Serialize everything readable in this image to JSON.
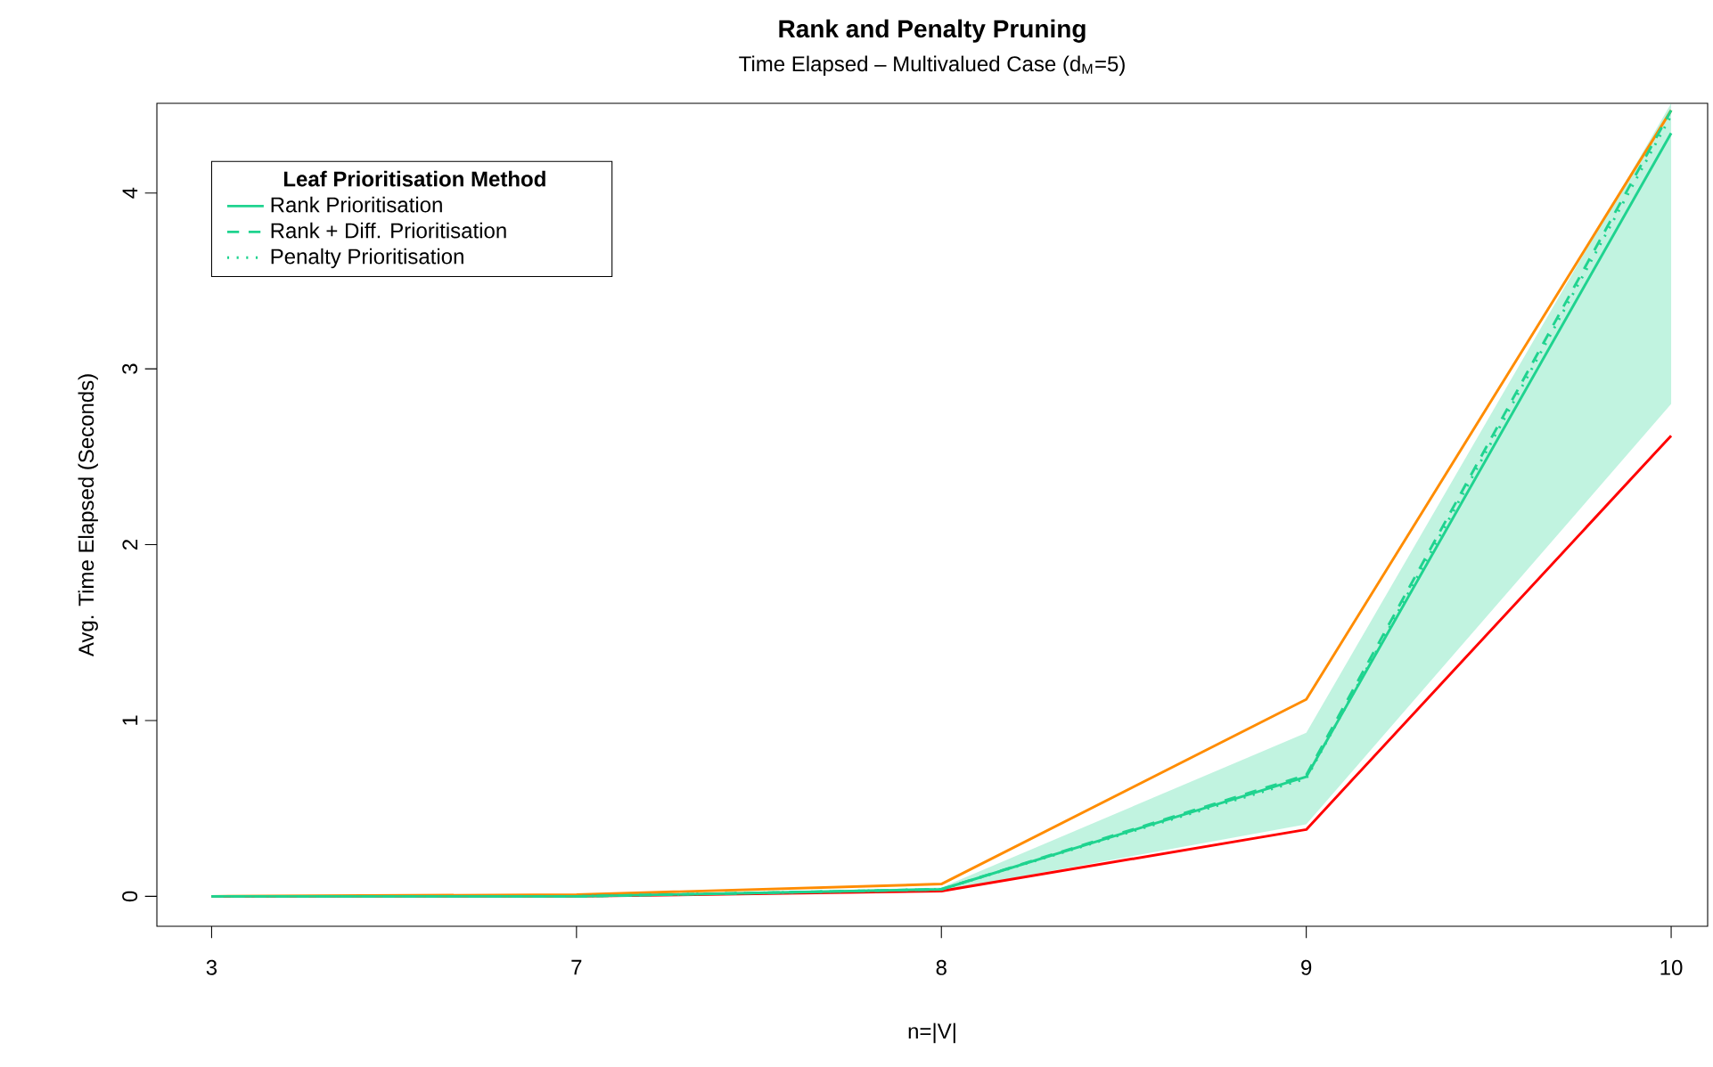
{
  "chart_data": {
    "type": "line",
    "title": "Rank and Penalty Pruning",
    "subtitle": "Time Elapsed – Multivalued Case (d$_{M}$=5)",
    "xlabel": "n=|V|",
    "ylabel": "Avg. Time Elapsed (Seconds)",
    "legend_title": "Leaf Prioritisation Method",
    "categories": [
      "3",
      "7",
      "8",
      "9",
      "10"
    ],
    "ylim": [
      -0.17,
      4.51
    ],
    "yticks": [
      0,
      1,
      2,
      3,
      4
    ],
    "legend": "top left",
    "series": [
      {
        "color": "#ff8c00",
        "values": [
          0,
          0.01,
          0.07,
          1.12,
          4.47
        ]
      },
      {
        "color": "#ff0000",
        "values": [
          0,
          0,
          0.03,
          0.38,
          2.62
        ]
      },
      {
        "name": "Rank Prioritisation",
        "color": "#1fd38f",
        "line_style": "solid",
        "values": [
          0,
          0,
          0.04,
          0.68,
          4.34
        ],
        "lower": [
          0,
          0,
          0.03,
          0.41,
          2.8
        ],
        "upper": [
          0,
          0,
          0.05,
          0.93,
          4.51
        ]
      },
      {
        "name": "Rank + Diff. Prioritisation",
        "color": "#1fd38f",
        "line_style": "dashed",
        "values": [
          0,
          0,
          0.04,
          0.69,
          4.47
        ]
      },
      {
        "name": "Penalty Prioritisation",
        "color": "#1fd38f",
        "line_style": "dotted",
        "values": [
          0,
          0,
          0.04,
          0.67,
          4.44
        ]
      }
    ]
  }
}
